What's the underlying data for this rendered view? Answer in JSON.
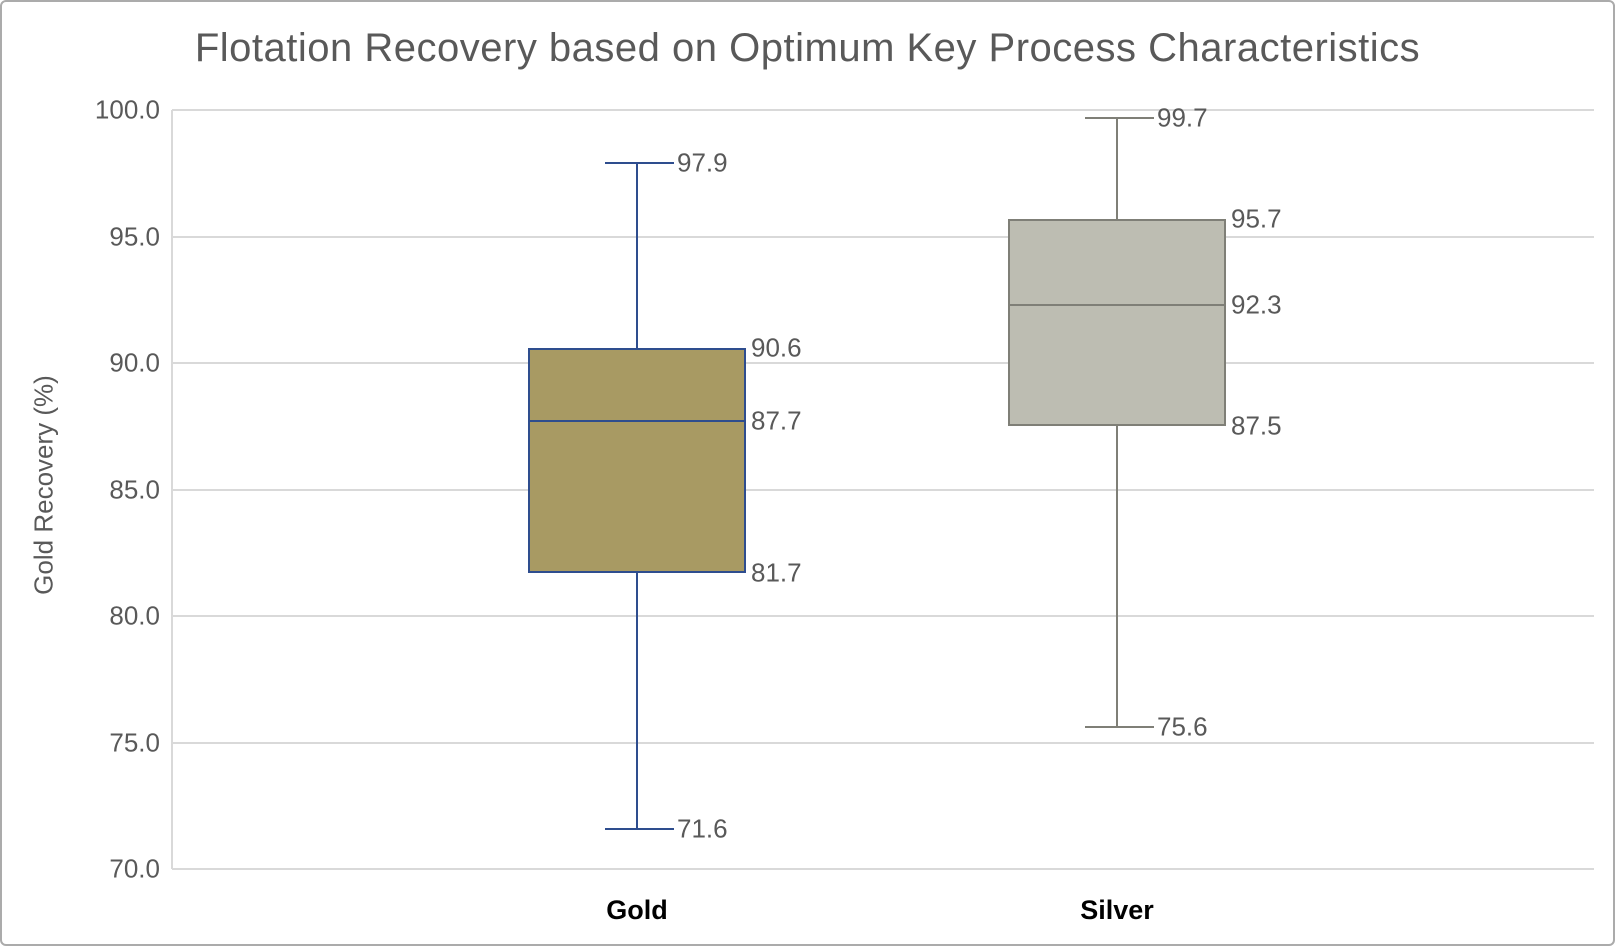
{
  "chart_data": {
    "type": "boxplot",
    "title": "Flotation Recovery based on Optimum Key Process Characteristics",
    "ylabel": "Gold Recovery (%)",
    "xlabel": "",
    "ylim": [
      70.0,
      100.0
    ],
    "yticks": [
      100.0,
      95.0,
      90.0,
      85.0,
      80.0,
      75.0,
      70.0
    ],
    "ytick_labels": [
      "100.0",
      "95.0",
      "90.0",
      "85.0",
      "80.0",
      "75.0",
      "70.0"
    ],
    "grid": "horizontal",
    "legend": "none",
    "categories": [
      "Gold",
      "Silver"
    ],
    "series": [
      {
        "name": "Gold",
        "min": 71.6,
        "q1": 81.7,
        "median": 87.7,
        "q3": 90.6,
        "max": 97.9,
        "value_labels": [
          "97.9",
          "90.6",
          "87.7",
          "81.7",
          "71.6"
        ],
        "box_fill": "#A89A63",
        "box_stroke": "#2E4D8E"
      },
      {
        "name": "Silver",
        "min": 75.6,
        "q1": 87.5,
        "median": 92.3,
        "q3": 95.7,
        "max": 99.7,
        "value_labels": [
          "99.7",
          "95.7",
          "92.3",
          "87.5",
          "75.6"
        ],
        "box_fill": "#BDBDB2",
        "box_stroke": "#7F7F77"
      }
    ],
    "colors": {
      "gridline": "#D9D9D9",
      "axis_text": "#595959",
      "title_text": "#595959",
      "category_text": "#000000",
      "canvas_border": "#ABABAB"
    }
  }
}
